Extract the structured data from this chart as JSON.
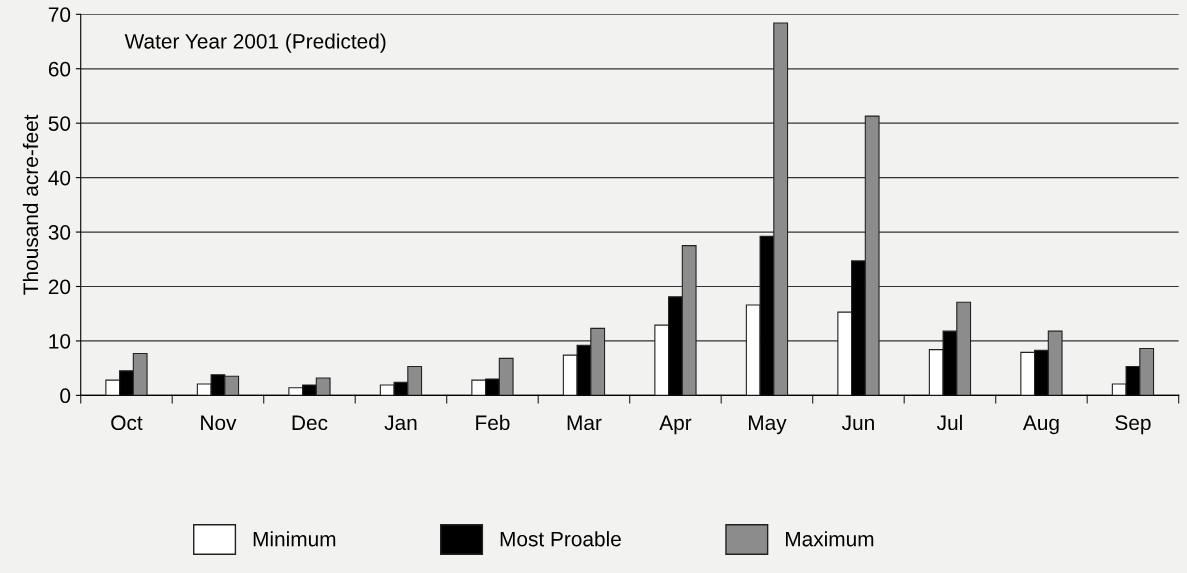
{
  "chart_data": {
    "type": "bar",
    "ylabel": "Thousand acre-feet",
    "annotations": [
      "Water Year 2001 (Predicted)"
    ],
    "categories": [
      "Oct",
      "Nov",
      "Dec",
      "Jan",
      "Feb",
      "Mar",
      "Apr",
      "May",
      "Jun",
      "Jul",
      "Aug",
      "Sep"
    ],
    "series": [
      {
        "name": "Minimum",
        "color": "#ffffff",
        "values": [
          2.8,
          2.1,
          1.4,
          1.9,
          2.8,
          7.4,
          12.9,
          16.6,
          15.3,
          8.4,
          7.9,
          2.1
        ]
      },
      {
        "name": "Most Proable",
        "color": "#000000",
        "values": [
          4.5,
          3.8,
          1.9,
          2.4,
          3.0,
          9.2,
          18.1,
          29.2,
          24.7,
          11.8,
          8.3,
          5.3
        ]
      },
      {
        "name": "Maximum",
        "color": "#8c8c8c",
        "values": [
          7.7,
          3.5,
          3.2,
          5.3,
          6.8,
          12.3,
          27.5,
          68.4,
          51.3,
          17.1,
          11.8,
          8.6
        ]
      }
    ],
    "ylim": [
      0,
      70
    ],
    "yticks": [
      0,
      10,
      20,
      30,
      40,
      50,
      60,
      70
    ],
    "grid": "y",
    "legend": "bottom"
  }
}
